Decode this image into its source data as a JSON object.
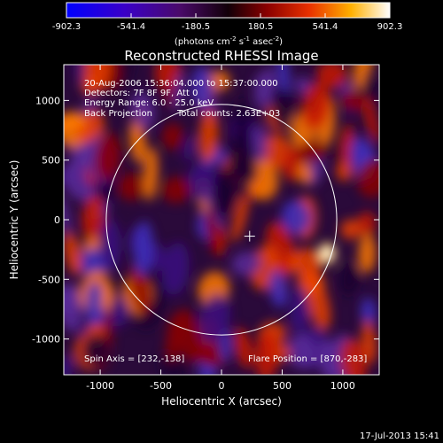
{
  "colorbar": {
    "ticks": [
      "-902.3",
      "-541.4",
      "-180.5",
      "180.5",
      "541.4",
      "902.3"
    ],
    "units_main": "(photons cm",
    "units_exp1": "-2",
    "units_mid": " s",
    "units_exp2": "-1",
    "units_end": " asec",
    "units_exp3": "-2",
    "units_close": ")"
  },
  "plot": {
    "title": "Reconstructed RHESSI Image",
    "xlabel": "Heliocentric X (arcsec)",
    "ylabel": "Heliocentric Y (arcsec)",
    "x_ticks": [
      "-1000",
      "-500",
      "0",
      "500",
      "1000"
    ],
    "y_ticks": [
      "1000",
      "500",
      "0",
      "-500",
      "-1000"
    ]
  },
  "annotations": {
    "line1": "20-Aug-2006 15:36:04.000 to 15:37:00.000",
    "line2": "Detectors: 7F 8F 9F, Att 0",
    "line3": "Energy Range: 6.0 - 25.0 keV",
    "line4a": "Back Projection",
    "line4b": "Total counts: 2.63E+03",
    "spin_axis": "Spin Axis = [232,-138]",
    "flare_position": "Flare Position = [870,-283]"
  },
  "footer": {
    "timestamp": "17-Jul-2013 15:41"
  },
  "chart_data": {
    "type": "heatmap",
    "title": "Reconstructed RHESSI Image",
    "xlabel": "Heliocentric X (arcsec)",
    "ylabel": "Heliocentric Y (arcsec)",
    "xlim": [
      -1300,
      1300
    ],
    "ylim": [
      -1300,
      1300
    ],
    "color_range": [
      -902.3,
      902.3
    ],
    "colormap": "blue-purple-red-yellow-white",
    "solar_limb_radius": 950,
    "markers": [
      {
        "label": "Spin Axis",
        "x": 232,
        "y": -138
      },
      {
        "label": "Flare Position",
        "x": 870,
        "y": -283
      }
    ]
  }
}
